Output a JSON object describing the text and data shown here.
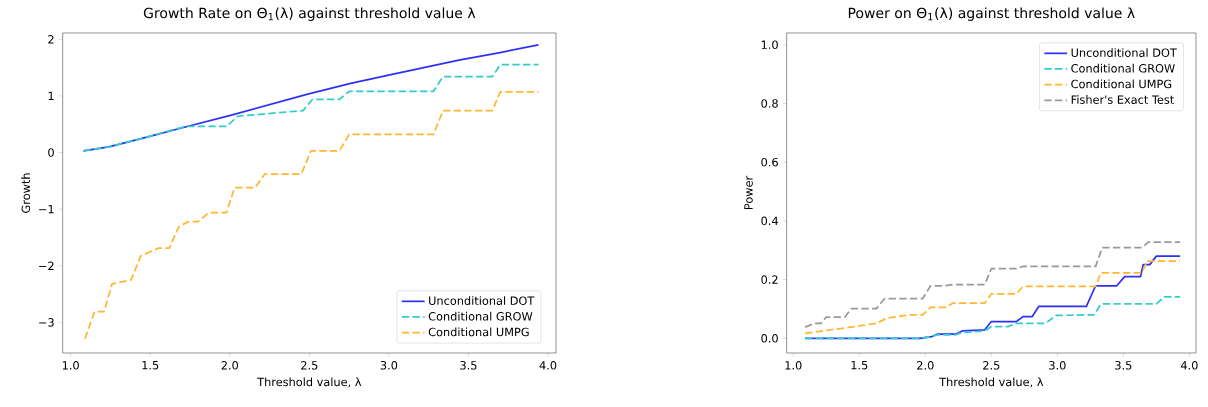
{
  "chart_data": [
    {
      "type": "line",
      "title": "Growth Rate on Θ$_{1}$(λ) against threshold value λ",
      "xlabel": "Threshold value, λ",
      "ylabel": "Growth",
      "xlim": [
        0.95,
        4.05
      ],
      "ylim": [
        -3.54,
        2.11
      ],
      "xticks": [
        {
          "value": 1.0,
          "label": "1.0"
        },
        {
          "value": 1.5,
          "label": "1.5"
        },
        {
          "value": 2.0,
          "label": "2.0"
        },
        {
          "value": 2.5,
          "label": "2.5"
        },
        {
          "value": 3.0,
          "label": "3.0"
        },
        {
          "value": 3.5,
          "label": "3.5"
        },
        {
          "value": 4.0,
          "label": "4.0"
        }
      ],
      "yticks": [
        {
          "value": -3,
          "label": "−3"
        },
        {
          "value": -2,
          "label": "−2"
        },
        {
          "value": -1,
          "label": "−1"
        },
        0,
        1,
        2
      ],
      "legend": "bottom right",
      "grid": false,
      "marker": "none",
      "series": [
        {
          "name": "Unconditional DOT",
          "color": "#3030f8",
          "line_style": "solid",
          "x": [
            1.08,
            1.24,
            1.45,
            1.72,
            2.01,
            2.49,
            2.76,
            3.02,
            3.44,
            3.69,
            3.94
          ],
          "values": [
            0.03,
            0.1,
            0.25,
            0.45,
            0.66,
            1.03,
            1.22,
            1.38,
            1.63,
            1.76,
            1.9
          ]
        },
        {
          "name": "Conditional GROW",
          "color": "#33cccc",
          "line_style": "dashed",
          "x": [
            1.08,
            1.24,
            1.45,
            1.72,
            1.98,
            2.05,
            2.46,
            2.52,
            2.69,
            2.75,
            3.28,
            3.34,
            3.65,
            3.7,
            3.94
          ],
          "values": [
            0.03,
            0.1,
            0.25,
            0.46,
            0.46,
            0.64,
            0.74,
            0.94,
            0.94,
            1.08,
            1.08,
            1.34,
            1.34,
            1.55,
            1.55
          ]
        },
        {
          "name": "Conditional UMPG",
          "color": "#ffb733",
          "line_style": "dashed",
          "x": [
            1.09,
            1.15,
            1.21,
            1.26,
            1.38,
            1.44,
            1.55,
            1.62,
            1.68,
            1.74,
            1.8,
            1.87,
            1.98,
            2.03,
            2.16,
            2.22,
            2.45,
            2.51,
            2.69,
            2.75,
            3.28,
            3.34,
            3.65,
            3.7,
            3.94
          ],
          "values": [
            -3.29,
            -2.81,
            -2.81,
            -2.32,
            -2.25,
            -1.83,
            -1.69,
            -1.69,
            -1.31,
            -1.22,
            -1.22,
            -1.06,
            -1.06,
            -0.62,
            -0.62,
            -0.38,
            -0.38,
            0.03,
            0.03,
            0.32,
            0.32,
            0.74,
            0.74,
            1.07,
            1.07
          ]
        }
      ]
    },
    {
      "type": "line",
      "title": "Power on Θ$_{1}$(λ) against threshold value λ",
      "xlabel": "Threshold value, λ",
      "ylabel": "Power",
      "xlim": [
        0.95,
        4.05
      ],
      "ylim": [
        -0.05,
        1.04
      ],
      "xticks": [
        {
          "value": 1.0,
          "label": "1.0"
        },
        {
          "value": 1.5,
          "label": "1.5"
        },
        {
          "value": 2.0,
          "label": "2.0"
        },
        {
          "value": 2.5,
          "label": "2.5"
        },
        {
          "value": 3.0,
          "label": "3.0"
        },
        {
          "value": 3.5,
          "label": "3.5"
        },
        {
          "value": 4.0,
          "label": "4.0"
        }
      ],
      "yticks": [
        {
          "value": 0,
          "label": "0.0"
        },
        {
          "value": 0.2,
          "label": "0.2"
        },
        {
          "value": 0.4,
          "label": "0.4"
        },
        {
          "value": 0.6,
          "label": "0.6"
        },
        {
          "value": 0.8,
          "label": "0.8"
        },
        {
          "value": 1.0,
          "label": "1.0"
        }
      ],
      "legend": "top right",
      "grid": false,
      "marker": "none",
      "series": [
        {
          "name": "Unconditional DOT",
          "color": "#3030f8",
          "line_style": "solid",
          "x": [
            1.09,
            1.96,
            2.05,
            2.09,
            2.23,
            2.28,
            2.45,
            2.5,
            2.69,
            2.74,
            2.81,
            2.86,
            3.22,
            3.29,
            3.45,
            3.51,
            3.63,
            3.65,
            3.7,
            3.75,
            3.93
          ],
          "values": [
            0,
            0,
            0.006,
            0.014,
            0.014,
            0.025,
            0.029,
            0.057,
            0.057,
            0.074,
            0.074,
            0.109,
            0.109,
            0.179,
            0.179,
            0.21,
            0.21,
            0.251,
            0.251,
            0.28,
            0.28
          ]
        },
        {
          "name": "Conditional GROW",
          "color": "#33cccc",
          "line_style": "dashed",
          "x": [
            1.09,
            1.96,
            2.05,
            2.09,
            2.23,
            2.28,
            2.45,
            2.5,
            2.63,
            2.68,
            2.91,
            2.99,
            3.28,
            3.33,
            3.75,
            3.81,
            3.93
          ],
          "values": [
            0,
            0,
            0.006,
            0.012,
            0.012,
            0.02,
            0.025,
            0.04,
            0.04,
            0.051,
            0.051,
            0.078,
            0.08,
            0.117,
            0.117,
            0.141,
            0.141
          ]
        },
        {
          "name": "Conditional UMPG",
          "color": "#ffb733",
          "line_style": "dashed",
          "x": [
            1.09,
            1.42,
            1.63,
            1.71,
            1.88,
            1.98,
            2.04,
            2.15,
            2.21,
            2.45,
            2.5,
            2.69,
            2.74,
            3.29,
            3.33,
            3.64,
            3.68,
            3.93
          ],
          "values": [
            0.017,
            0.037,
            0.051,
            0.069,
            0.08,
            0.08,
            0.105,
            0.105,
            0.12,
            0.12,
            0.151,
            0.151,
            0.177,
            0.177,
            0.223,
            0.223,
            0.263,
            0.263
          ]
        },
        {
          "name": "Fisher's Exact Test",
          "color": "#999999",
          "line_style": "dashed",
          "x": [
            1.09,
            1.16,
            1.21,
            1.25,
            1.39,
            1.44,
            1.63,
            1.69,
            1.98,
            2.04,
            2.15,
            2.21,
            2.45,
            2.5,
            2.69,
            2.74,
            3.29,
            3.34,
            3.64,
            3.69,
            3.93
          ],
          "values": [
            0.038,
            0.051,
            0.051,
            0.072,
            0.072,
            0.101,
            0.101,
            0.135,
            0.135,
            0.179,
            0.179,
            0.183,
            0.183,
            0.237,
            0.237,
            0.245,
            0.245,
            0.309,
            0.309,
            0.328,
            0.328
          ]
        }
      ]
    }
  ]
}
